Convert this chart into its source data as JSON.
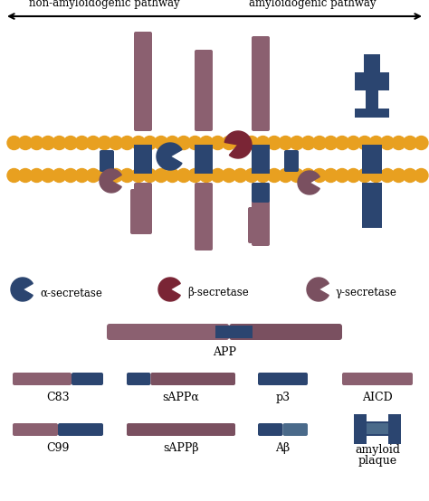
{
  "colors": {
    "mauve": "#8B6070",
    "dark_blue": "#2B4570",
    "med_blue": "#3D5A80",
    "orange": "#E8A020",
    "brown_red": "#7A2535",
    "dark_mauve": "#7A5060",
    "light_blue": "#4A6A8A",
    "white": "#FFFFFF"
  },
  "title_left": "non-amyloidogenic pathway",
  "title_right": "amyloidogenic pathway",
  "legend_labels": [
    "α-secretase",
    "β-secretase",
    "γ-secretase"
  ],
  "app_label": "APP",
  "bottom_row1_labels": [
    "C83",
    "sAPPα",
    "p3",
    "AICD"
  ],
  "bottom_row2_labels": [
    "C99",
    "sAPPβ",
    "Aβ",
    "amyloid\nplaque"
  ]
}
